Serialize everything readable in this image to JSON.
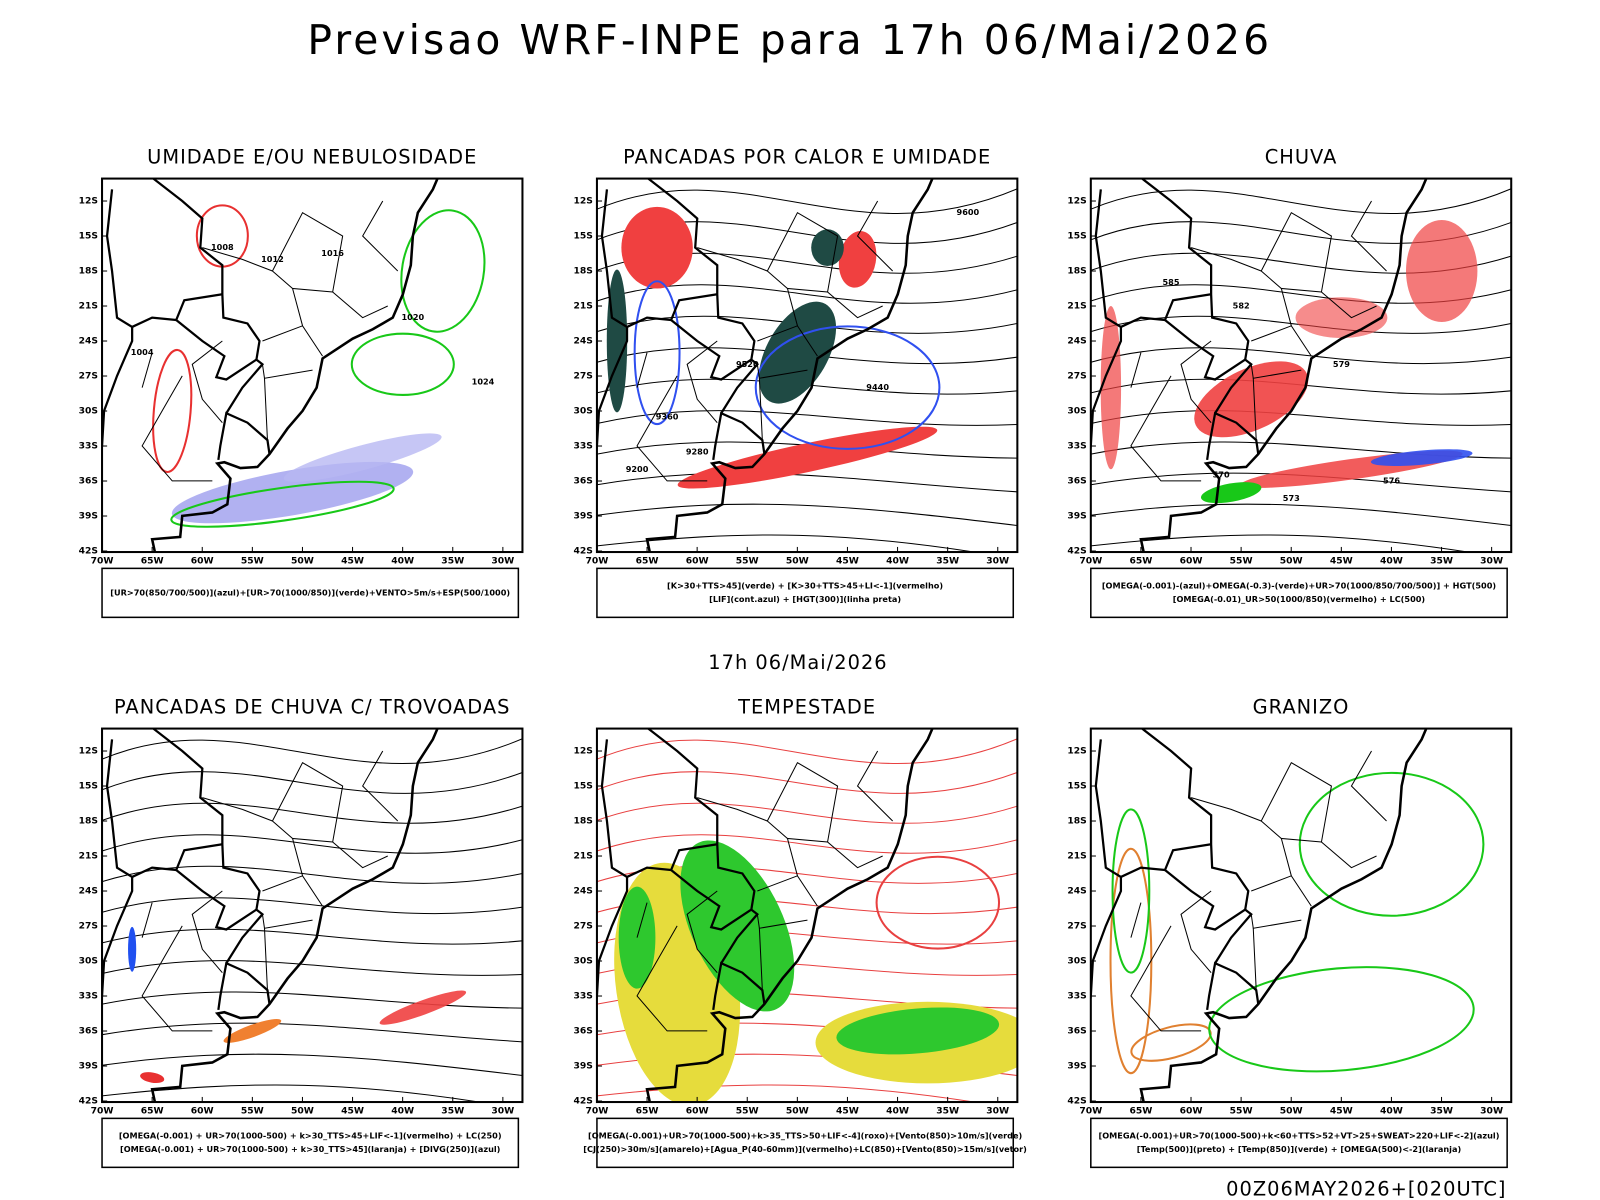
{
  "title": "Previsao WRF-INPE  para 17h 06/Mai/2026",
  "subtitle": "17h 06/Mai/2026",
  "footer": "00Z06MAY2026+[020UTC]",
  "lat_labels": [
    "12S",
    "15S",
    "18S",
    "21S",
    "24S",
    "27S",
    "30S",
    "33S",
    "36S",
    "39S",
    "42S"
  ],
  "lon_labels": [
    "70W",
    "65W",
    "60W",
    "55W",
    "50W",
    "45W",
    "40W",
    "35W",
    "30W"
  ],
  "panels": [
    {
      "title": "UMIDADE E/OU NEBULOSIDADE",
      "legend": [
        "[UR>70(850/700/500)](azul)+[UR>70(1000/850)](verde)+VENTO>5m/s+ESP(500/1000)"
      ],
      "contour_labels": [
        "1008",
        "1012",
        "1016",
        "1020",
        "1024",
        "1004"
      ]
    },
    {
      "title": "PANCADAS POR CALOR E UMIDADE",
      "legend": [
        "[K>30+TTS>45](verde) + [K>30+TTS>45+LI<-1](vermelho)",
        "[LIF](cont.azul) + [HGT(300)](linha preta)"
      ],
      "contour_labels": [
        "9600",
        "9520",
        "9440",
        "9360",
        "9280",
        "9200"
      ]
    },
    {
      "title": "CHUVA",
      "legend": [
        "[OMEGA(-0.001)-(azul)+OMEGA(-0.3)-(verde)+UR>70(1000/850/700/500)] + HGT(500)",
        "[OMEGA(-0.01)_UR>50(1000/850)(vermelho) + LC(500)"
      ],
      "contour_labels": [
        "585",
        "582",
        "579",
        "576",
        "573",
        "570"
      ]
    },
    {
      "title": "PANCADAS DE CHUVA C/ TROVOADAS",
      "legend": [
        "[OMEGA(-0.001) + UR>70(1000-500) + k>30_TTS>45+LIF<-1](vermelho) + LC(250)",
        "[OMEGA(-0.001) + UR>70(1000-500) + k>30_TTS>45](laranja) + [DIVG(250)](azul)"
      ]
    },
    {
      "title": "TEMPESTADE",
      "legend": [
        "[OMEGA(-0.001)+UR>70(1000-500)+k>35_TTS>50+LIF<-4](roxo)+[Vento(850)>10m/s](verde)",
        "[CJ(250)>30m/s](amarelo)+[Agua_P(40-60mm)](vermelho)+LC(850)+[Vento(850)>15m/s](vetor)"
      ]
    },
    {
      "title": "GRANIZO",
      "legend": [
        "[OMEGA(-0.001)+UR>70(1000-500)+k<60+TTS>52+VT>25+SWEAT>220+LIF<-2](azul)",
        "[Temp(500)](preto) + [Temp(850)](verde) + [OMEGA(500)<-2](laranja)"
      ]
    }
  ]
}
